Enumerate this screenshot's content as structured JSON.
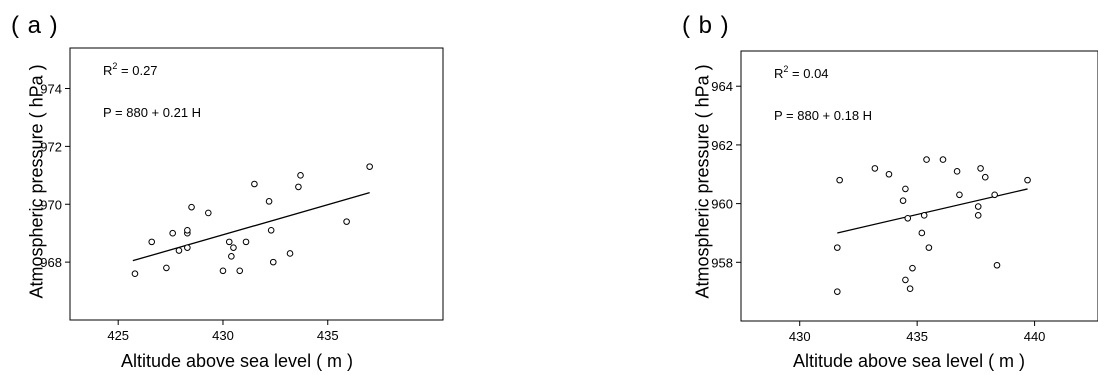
{
  "chart_data": [
    {
      "type": "scatter",
      "panel_label": "( a )",
      "xlabel": "Altitude above sea level ( m )",
      "ylabel": "Atmospheric pressure ( hPa )",
      "xlim": [
        422.7,
        440.5
      ],
      "ylim": [
        966.0,
        975.4
      ],
      "xticks": [
        425,
        430,
        435
      ],
      "yticks": [
        968,
        970,
        972,
        974
      ],
      "annotations": {
        "r2_label": "R",
        "r2_sup": "2",
        "r2_value": " = 0.27",
        "equation": "P = 880 + 0.21 H"
      },
      "fit_line": {
        "x": [
          425.7,
          437.0
        ],
        "y": [
          968.05,
          970.4
        ]
      },
      "points": [
        {
          "x": 425.8,
          "y": 967.6
        },
        {
          "x": 426.6,
          "y": 968.7
        },
        {
          "x": 427.3,
          "y": 967.8
        },
        {
          "x": 427.6,
          "y": 969.0
        },
        {
          "x": 427.9,
          "y": 968.4
        },
        {
          "x": 428.3,
          "y": 968.5
        },
        {
          "x": 428.3,
          "y": 969.0
        },
        {
          "x": 428.3,
          "y": 969.1
        },
        {
          "x": 428.5,
          "y": 969.9
        },
        {
          "x": 429.3,
          "y": 969.7
        },
        {
          "x": 430.0,
          "y": 967.7
        },
        {
          "x": 430.3,
          "y": 968.7
        },
        {
          "x": 430.4,
          "y": 968.2
        },
        {
          "x": 430.5,
          "y": 968.5
        },
        {
          "x": 430.8,
          "y": 967.7
        },
        {
          "x": 431.1,
          "y": 968.7
        },
        {
          "x": 431.5,
          "y": 970.7
        },
        {
          "x": 432.2,
          "y": 970.1
        },
        {
          "x": 432.3,
          "y": 969.1
        },
        {
          "x": 432.4,
          "y": 968.0
        },
        {
          "x": 433.2,
          "y": 968.3
        },
        {
          "x": 433.6,
          "y": 970.6
        },
        {
          "x": 433.7,
          "y": 971.0
        },
        {
          "x": 435.9,
          "y": 969.4
        },
        {
          "x": 437.0,
          "y": 971.3
        }
      ]
    },
    {
      "type": "scatter",
      "panel_label": "( b )",
      "xlabel": "Altitude above sea level ( m )",
      "ylabel": "Atmospheric pressure ( hPa )",
      "xlim": [
        427.5,
        442.7
      ],
      "ylim": [
        956.0,
        965.2
      ],
      "xticks": [
        430,
        435,
        440
      ],
      "yticks": [
        958,
        960,
        962,
        964
      ],
      "annotations": {
        "r2_label": "R",
        "r2_sup": "2",
        "r2_value": " = 0.04",
        "equation": "P = 880 + 0.18 H"
      },
      "fit_line": {
        "x": [
          431.6,
          439.7
        ],
        "y": [
          959.0,
          960.5
        ]
      },
      "points": [
        {
          "x": 431.6,
          "y": 958.5
        },
        {
          "x": 431.6,
          "y": 957.0
        },
        {
          "x": 431.7,
          "y": 960.8
        },
        {
          "x": 433.2,
          "y": 961.2
        },
        {
          "x": 433.8,
          "y": 961.0
        },
        {
          "x": 434.4,
          "y": 960.1
        },
        {
          "x": 434.5,
          "y": 960.5
        },
        {
          "x": 434.5,
          "y": 957.4
        },
        {
          "x": 434.6,
          "y": 959.5
        },
        {
          "x": 434.7,
          "y": 957.1
        },
        {
          "x": 434.8,
          "y": 957.8
        },
        {
          "x": 435.2,
          "y": 959.0
        },
        {
          "x": 435.3,
          "y": 959.6
        },
        {
          "x": 435.4,
          "y": 961.5
        },
        {
          "x": 435.5,
          "y": 958.5
        },
        {
          "x": 436.1,
          "y": 961.5
        },
        {
          "x": 436.7,
          "y": 961.1
        },
        {
          "x": 436.8,
          "y": 960.3
        },
        {
          "x": 437.6,
          "y": 959.9
        },
        {
          "x": 437.6,
          "y": 959.6
        },
        {
          "x": 437.7,
          "y": 961.2
        },
        {
          "x": 437.9,
          "y": 960.9
        },
        {
          "x": 438.3,
          "y": 960.3
        },
        {
          "x": 438.4,
          "y": 957.9
        },
        {
          "x": 439.7,
          "y": 960.8
        }
      ]
    }
  ]
}
